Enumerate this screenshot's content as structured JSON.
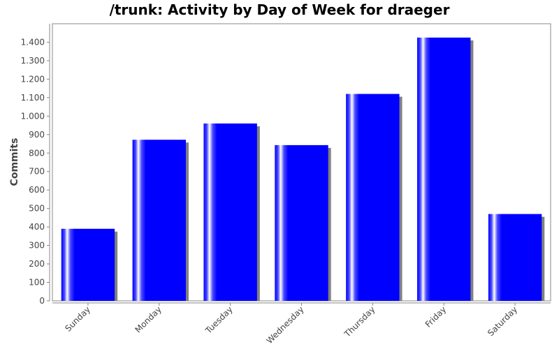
{
  "chart_data": {
    "type": "bar",
    "title": "/trunk: Activity by Day of Week for draeger",
    "xlabel": "",
    "ylabel": "Commits",
    "categories": [
      "Sunday",
      "Monday",
      "Tuesday",
      "Wednesday",
      "Thursday",
      "Friday",
      "Saturday"
    ],
    "values": [
      390,
      872,
      960,
      843,
      1120,
      1425,
      470
    ],
    "ylim": [
      0,
      1500
    ],
    "yticks": [
      0,
      100,
      200,
      300,
      400,
      500,
      600,
      700,
      800,
      900,
      1000,
      1100,
      1200,
      1300,
      1400
    ],
    "ytick_labels": [
      "0",
      "100",
      "200",
      "300",
      "400",
      "500",
      "600",
      "700",
      "800",
      "900",
      "1.000",
      "1.100",
      "1.200",
      "1.300",
      "1.400"
    ],
    "grid": false,
    "legend": "none",
    "colors": {
      "bar": "#0000ff",
      "shadow": "#808080",
      "axis": "#888888"
    }
  }
}
